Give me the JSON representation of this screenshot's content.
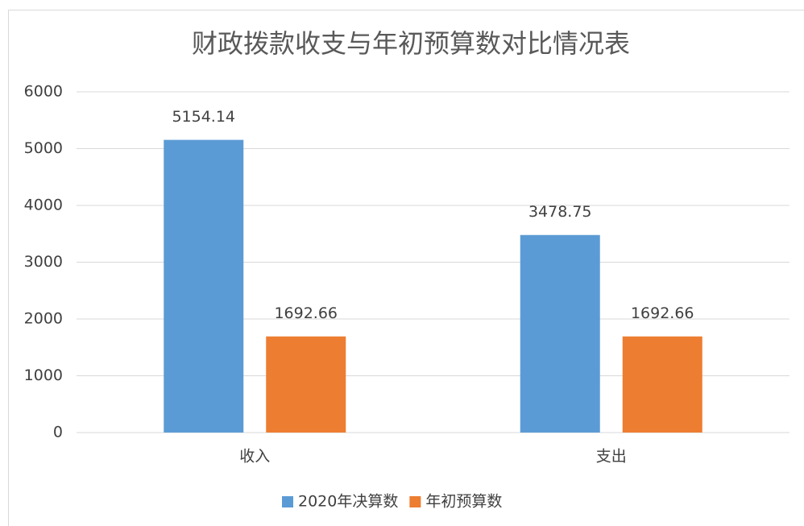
{
  "chart_data": {
    "type": "bar",
    "title": "财政拨款收支与年初预算数对比情况表",
    "categories": [
      "收入",
      "支出"
    ],
    "series": [
      {
        "name": "2020年决算数",
        "color": "#5b9bd5",
        "values": [
          5154.14,
          3478.75
        ]
      },
      {
        "name": "年初预算数",
        "color": "#ed7d31",
        "values": [
          1692.66,
          1692.66
        ]
      }
    ],
    "ylim": [
      0,
      6000
    ],
    "yticks": [
      0,
      1000,
      2000,
      3000,
      4000,
      5000,
      6000
    ],
    "grid": true,
    "legend": "bottom"
  }
}
